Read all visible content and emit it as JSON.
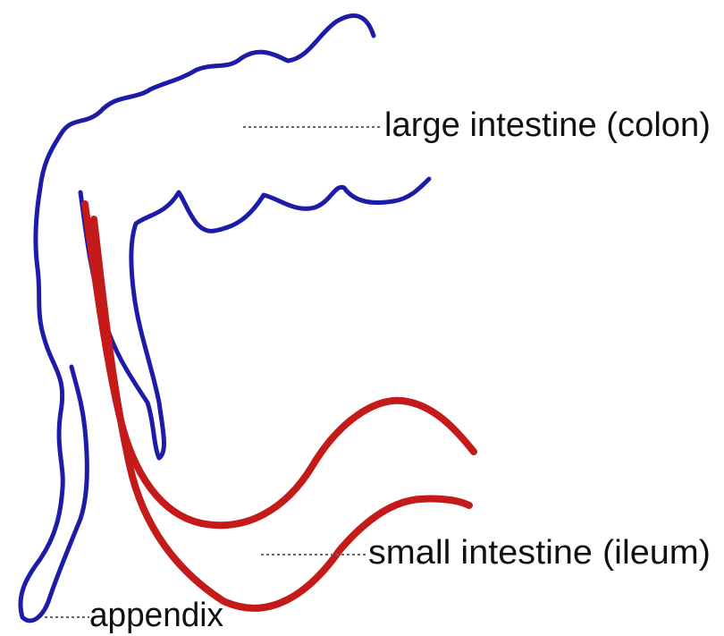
{
  "labels": [
    "large intestine (colon)",
    "small intestine (ileum)",
    "appendix"
  ]
}
